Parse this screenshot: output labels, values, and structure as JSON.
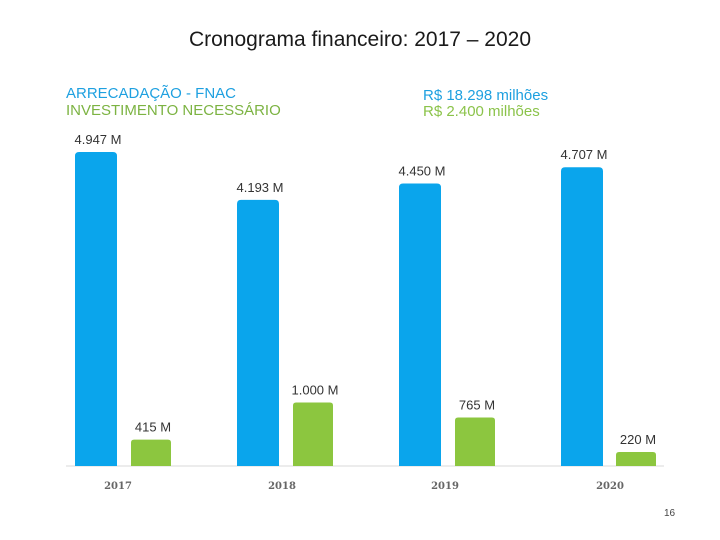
{
  "header": {
    "title": "Cronograma financeiro: 2017 – 2020"
  },
  "legend": {
    "left_line1": "ARRECADAÇÃO - FNAC",
    "left_line2": "INVESTIMENTO NECESSÁRIO",
    "right_line1": "R$ 18.298 milhões",
    "right_line2": "R$ 2.400 milhões"
  },
  "footer": {
    "page_number": "16"
  },
  "colors": {
    "arrecadacao": "#0aa5ec",
    "investimento": "#8cc63f",
    "axis": "#d9d9d9",
    "label": "#333333"
  },
  "chart_data": {
    "type": "bar",
    "title": "Cronograma financeiro: 2017 – 2020",
    "categories": [
      "2017",
      "2018",
      "2019",
      "2020"
    ],
    "series": [
      {
        "name": "ARRECADAÇÃO - FNAC",
        "values": [
          4947,
          4193,
          4450,
          4707
        ],
        "labels": [
          "4.947 M",
          "4.193 M",
          "4.450 M",
          "4.707 M"
        ]
      },
      {
        "name": "INVESTIMENTO NECESSÁRIO",
        "values": [
          415,
          1000,
          765,
          220
        ],
        "labels": [
          "415 M",
          "1.000 M",
          "765 M",
          "220 M"
        ]
      }
    ],
    "ylim": [
      0,
      4947
    ],
    "grid": false
  }
}
